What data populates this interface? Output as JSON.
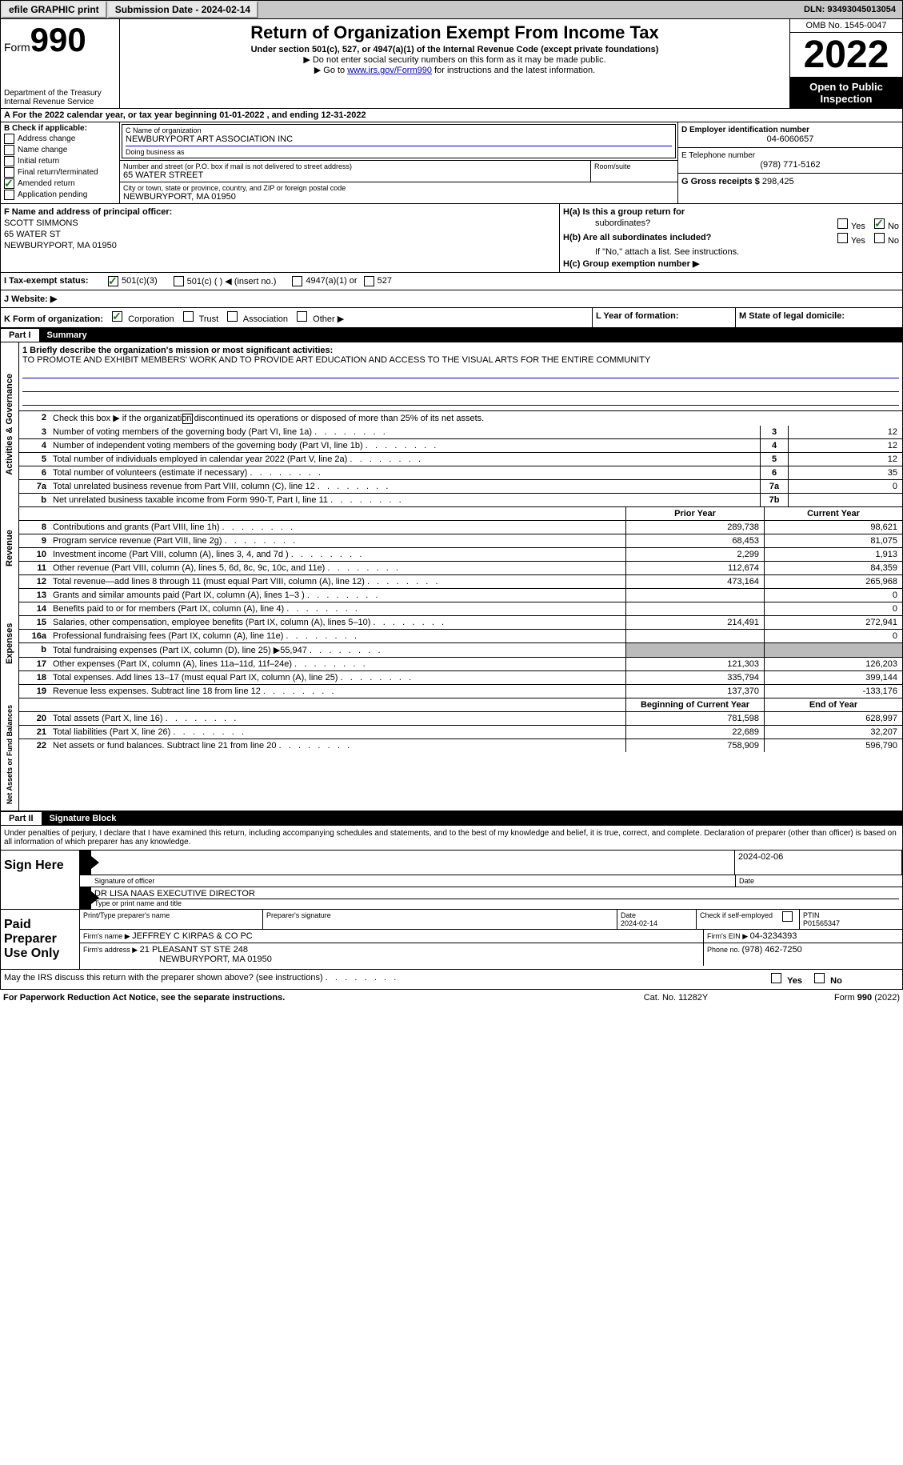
{
  "topbar": {
    "efile_label": "efile GRAPHIC print",
    "submission_label": "Submission Date - 2024-02-14",
    "dln_label": "DLN: 93493045013054"
  },
  "header": {
    "form_label": "Form",
    "form_number": "990",
    "title": "Return of Organization Exempt From Income Tax",
    "subtitle": "Under section 501(c), 527, or 4947(a)(1) of the Internal Revenue Code (except private foundations)",
    "note1": "Do not enter social security numbers on this form as it may be made public.",
    "note2_prefix": "Go to ",
    "note2_link": "www.irs.gov/Form990",
    "note2_suffix": " for instructions and the latest information.",
    "dept": "Department of the Treasury",
    "irs": "Internal Revenue Service",
    "omb": "OMB No. 1545-0047",
    "year": "2022",
    "open_inspect": "Open to Public Inspection"
  },
  "section_a": "A For the 2022 calendar year, or tax year beginning 01-01-2022   , and ending 12-31-2022",
  "block_b": {
    "header": "B Check if applicable:",
    "items": [
      "Address change",
      "Name change",
      "Initial return",
      "Final return/terminated",
      "Amended return",
      "Application pending"
    ],
    "checked_index": 4
  },
  "block_c": {
    "name_lbl": "C Name of organization",
    "name": "NEWBURYPORT ART ASSOCIATION INC",
    "dba_lbl": "Doing business as",
    "addr_lbl": "Number and street (or P.O. box if mail is not delivered to street address)",
    "room_lbl": "Room/suite",
    "addr": "65 WATER STREET",
    "city_lbl": "City or town, state or province, country, and ZIP or foreign postal code",
    "city": "NEWBURYPORT, MA  01950"
  },
  "block_d": {
    "ein_lbl": "D Employer identification number",
    "ein": "04-6060657",
    "phone_lbl": "E Telephone number",
    "phone": "(978) 771-5162",
    "gross_lbl": "G Gross receipts $ ",
    "gross": "298,425"
  },
  "block_f": {
    "lbl": "F Name and address of principal officer:",
    "name": "SCOTT SIMMONS",
    "addr1": "65 WATER ST",
    "addr2": "NEWBURYPORT, MA  01950"
  },
  "block_h": {
    "ha_lbl": "H(a)  Is this a group return for",
    "ha_sub": "subordinates?",
    "hb_lbl": "H(b)  Are all subordinates included?",
    "hb_note": "If \"No,\" attach a list. See instructions.",
    "hc_lbl": "H(c)  Group exemption number ▶",
    "yes": "Yes",
    "no": "No"
  },
  "tax_status": {
    "i_lbl": "I  Tax-exempt status:",
    "opt1": "501(c)(3)",
    "opt2": "501(c) (  ) ◀ (insert no.)",
    "opt3": "4947(a)(1) or",
    "opt4": "527"
  },
  "website_lbl": "J  Website: ▶",
  "line_k": {
    "lbl": "K Form of organization:",
    "opts": [
      "Corporation",
      "Trust",
      "Association",
      "Other ▶"
    ]
  },
  "line_l": "L Year of formation:",
  "line_m": "M State of legal domicile:",
  "parts": {
    "p1_num": "Part I",
    "p1_title": "Summary",
    "p2_num": "Part II",
    "p2_title": "Signature Block"
  },
  "mission": {
    "lbl": "1  Briefly describe the organization's mission or most significant activities:",
    "text": "TO PROMOTE AND EXHIBIT MEMBERS' WORK AND TO PROVIDE ART EDUCATION AND ACCESS TO THE VISUAL ARTS FOR THE ENTIRE COMMUNITY"
  },
  "summary_lines": {
    "l2": "Check this box ▶      if the organization discontinued its operations or disposed of more than 25% of its net assets.",
    "l3": {
      "text": "Number of voting members of the governing body (Part VI, line 1a)",
      "box": "3",
      "val": "12"
    },
    "l4": {
      "text": "Number of independent voting members of the governing body (Part VI, line 1b)",
      "box": "4",
      "val": "12"
    },
    "l5": {
      "text": "Total number of individuals employed in calendar year 2022 (Part V, line 2a)",
      "box": "5",
      "val": "12"
    },
    "l6": {
      "text": "Total number of volunteers (estimate if necessary)",
      "box": "6",
      "val": "35"
    },
    "l7a": {
      "text": "Total unrelated business revenue from Part VIII, column (C), line 12",
      "box": "7a",
      "val": "0"
    },
    "l7b": {
      "text": "Net unrelated business taxable income from Form 990-T, Part I, line 11",
      "box": "7b",
      "val": ""
    }
  },
  "headers": {
    "prior": "Prior Year",
    "current": "Current Year",
    "begin": "Beginning of Current Year",
    "end": "End of Year"
  },
  "revenue": [
    {
      "n": "8",
      "text": "Contributions and grants (Part VIII, line 1h)",
      "prior": "289,738",
      "cur": "98,621"
    },
    {
      "n": "9",
      "text": "Program service revenue (Part VIII, line 2g)",
      "prior": "68,453",
      "cur": "81,075"
    },
    {
      "n": "10",
      "text": "Investment income (Part VIII, column (A), lines 3, 4, and 7d )",
      "prior": "2,299",
      "cur": "1,913"
    },
    {
      "n": "11",
      "text": "Other revenue (Part VIII, column (A), lines 5, 6d, 8c, 9c, 10c, and 11e)",
      "prior": "112,674",
      "cur": "84,359"
    },
    {
      "n": "12",
      "text": "Total revenue—add lines 8 through 11 (must equal Part VIII, column (A), line 12)",
      "prior": "473,164",
      "cur": "265,968"
    }
  ],
  "expenses": [
    {
      "n": "13",
      "text": "Grants and similar amounts paid (Part IX, column (A), lines 1–3 )",
      "prior": "",
      "cur": "0"
    },
    {
      "n": "14",
      "text": "Benefits paid to or for members (Part IX, column (A), line 4)",
      "prior": "",
      "cur": "0"
    },
    {
      "n": "15",
      "text": "Salaries, other compensation, employee benefits (Part IX, column (A), lines 5–10)",
      "prior": "214,491",
      "cur": "272,941"
    },
    {
      "n": "16a",
      "text": "Professional fundraising fees (Part IX, column (A), line 11e)",
      "prior": "",
      "cur": "0"
    },
    {
      "n": "b",
      "text": "Total fundraising expenses (Part IX, column (D), line 25) ▶55,947",
      "prior": "grey",
      "cur": "grey"
    },
    {
      "n": "17",
      "text": "Other expenses (Part IX, column (A), lines 11a–11d, 11f–24e)",
      "prior": "121,303",
      "cur": "126,203"
    },
    {
      "n": "18",
      "text": "Total expenses. Add lines 13–17 (must equal Part IX, column (A), line 25)",
      "prior": "335,794",
      "cur": "399,144"
    },
    {
      "n": "19",
      "text": "Revenue less expenses. Subtract line 18 from line 12",
      "prior": "137,370",
      "cur": "-133,176"
    }
  ],
  "netassets": [
    {
      "n": "20",
      "text": "Total assets (Part X, line 16)",
      "prior": "781,598",
      "cur": "628,997"
    },
    {
      "n": "21",
      "text": "Total liabilities (Part X, line 26)",
      "prior": "22,689",
      "cur": "32,207"
    },
    {
      "n": "22",
      "text": "Net assets or fund balances. Subtract line 21 from line 20",
      "prior": "758,909",
      "cur": "596,790"
    }
  ],
  "vtabs": {
    "gov": "Activities & Governance",
    "rev": "Revenue",
    "exp": "Expenses",
    "net": "Net Assets or Fund Balances"
  },
  "sig": {
    "penalty": "Under penalties of perjury, I declare that I have examined this return, including accompanying schedules and statements, and to the best of my knowledge and belief, it is true, correct, and complete. Declaration of preparer (other than officer) is based on all information of which preparer has any knowledge.",
    "sign_here": "Sign Here",
    "sig_officer_lbl": "Signature of officer",
    "sig_date": "2024-02-06",
    "date_lbl": "Date",
    "name_title": "DR LISA NAAS  EXECUTIVE DIRECTOR",
    "name_title_lbl": "Type or print name and title",
    "paid_prep": "Paid Preparer Use Only",
    "prep_name_lbl": "Print/Type preparer's name",
    "prep_sig_lbl": "Preparer's signature",
    "prep_date_lbl": "Date",
    "prep_date": "2024-02-14",
    "check_self": "Check       if self-employed",
    "ptin_lbl": "PTIN",
    "ptin": "P01565347",
    "firm_name_lbl": "Firm's name   ▶ ",
    "firm_name": "JEFFREY C KIRPAS & CO PC",
    "firm_ein_lbl": "Firm's EIN ▶ ",
    "firm_ein": "04-3234393",
    "firm_addr_lbl": "Firm's address ▶ ",
    "firm_addr1": "21 PLEASANT ST STE 248",
    "firm_addr2": "NEWBURYPORT, MA  01950",
    "firm_phone_lbl": "Phone no. ",
    "firm_phone": "(978) 462-7250",
    "may_irs": "May the IRS discuss this return with the preparer shown above? (see instructions)"
  },
  "footer": {
    "paperwork": "For Paperwork Reduction Act Notice, see the separate instructions.",
    "cat": "Cat. No. 11282Y",
    "form": "Form 990 (2022)"
  }
}
